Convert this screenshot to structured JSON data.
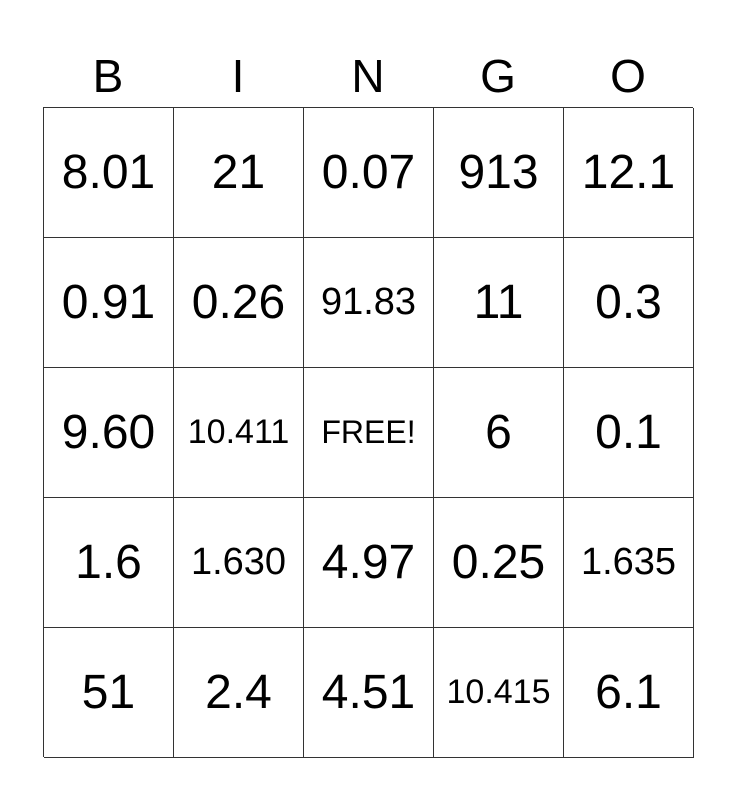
{
  "header": [
    "B",
    "I",
    "N",
    "G",
    "O"
  ],
  "rows": [
    [
      "8.01",
      "21",
      "0.07",
      "913",
      "12.1"
    ],
    [
      "0.91",
      "0.26",
      "91.83",
      "11",
      "0.3"
    ],
    [
      "9.60",
      "10.411",
      "FREE!",
      "6",
      "0.1"
    ],
    [
      "1.6",
      "1.630",
      "4.97",
      "0.25",
      "1.635"
    ],
    [
      "51",
      "2.4",
      "4.51",
      "10.415",
      "6.1"
    ]
  ]
}
